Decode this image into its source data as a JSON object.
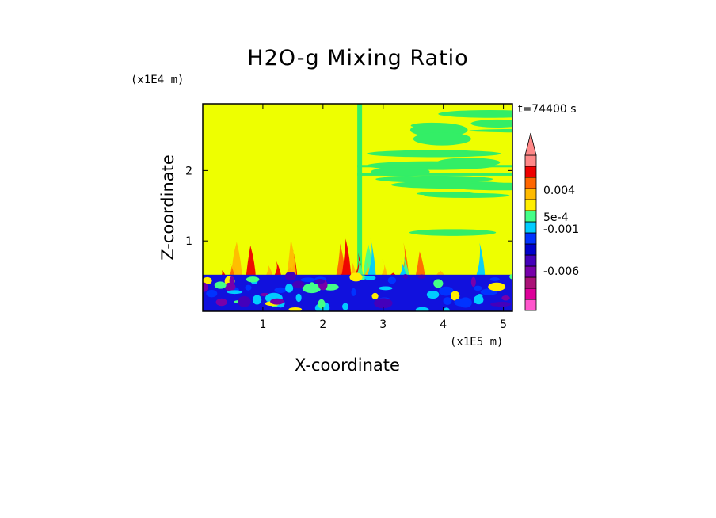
{
  "chart_data": {
    "type": "heatmap",
    "title": "H2O-g Mixing Ratio",
    "xlabel": "X-coordinate",
    "ylabel": "Z-coordinate",
    "x_scale_label": "(x1E5 m)",
    "y_scale_label": "(x1E4 m)",
    "time_label": "t=74400 s",
    "xlim": [
      0.0,
      5.15
    ],
    "ylim": [
      0.0,
      2.95
    ],
    "x_ticks": [
      1,
      2,
      3,
      4,
      5
    ],
    "y_ticks": [
      1,
      2
    ],
    "colorbar": {
      "colors": [
        "#ff55cc",
        "#dd0099",
        "#aa1177",
        "#7700aa",
        "#4400bb",
        "#0000cc",
        "#0033ff",
        "#00ccff",
        "#44ff88",
        "#ffee00",
        "#ffbb00",
        "#ff6600",
        "#ee0000",
        "#ff8888"
      ],
      "tick_labels": [
        "-0.006",
        "-0.001",
        "5e-4",
        "0.004"
      ],
      "extend": "max"
    },
    "colors": {
      "background_field": "#eeff00",
      "mixed_region": "#33ee66",
      "lower_layer": "#1111dd"
    }
  }
}
